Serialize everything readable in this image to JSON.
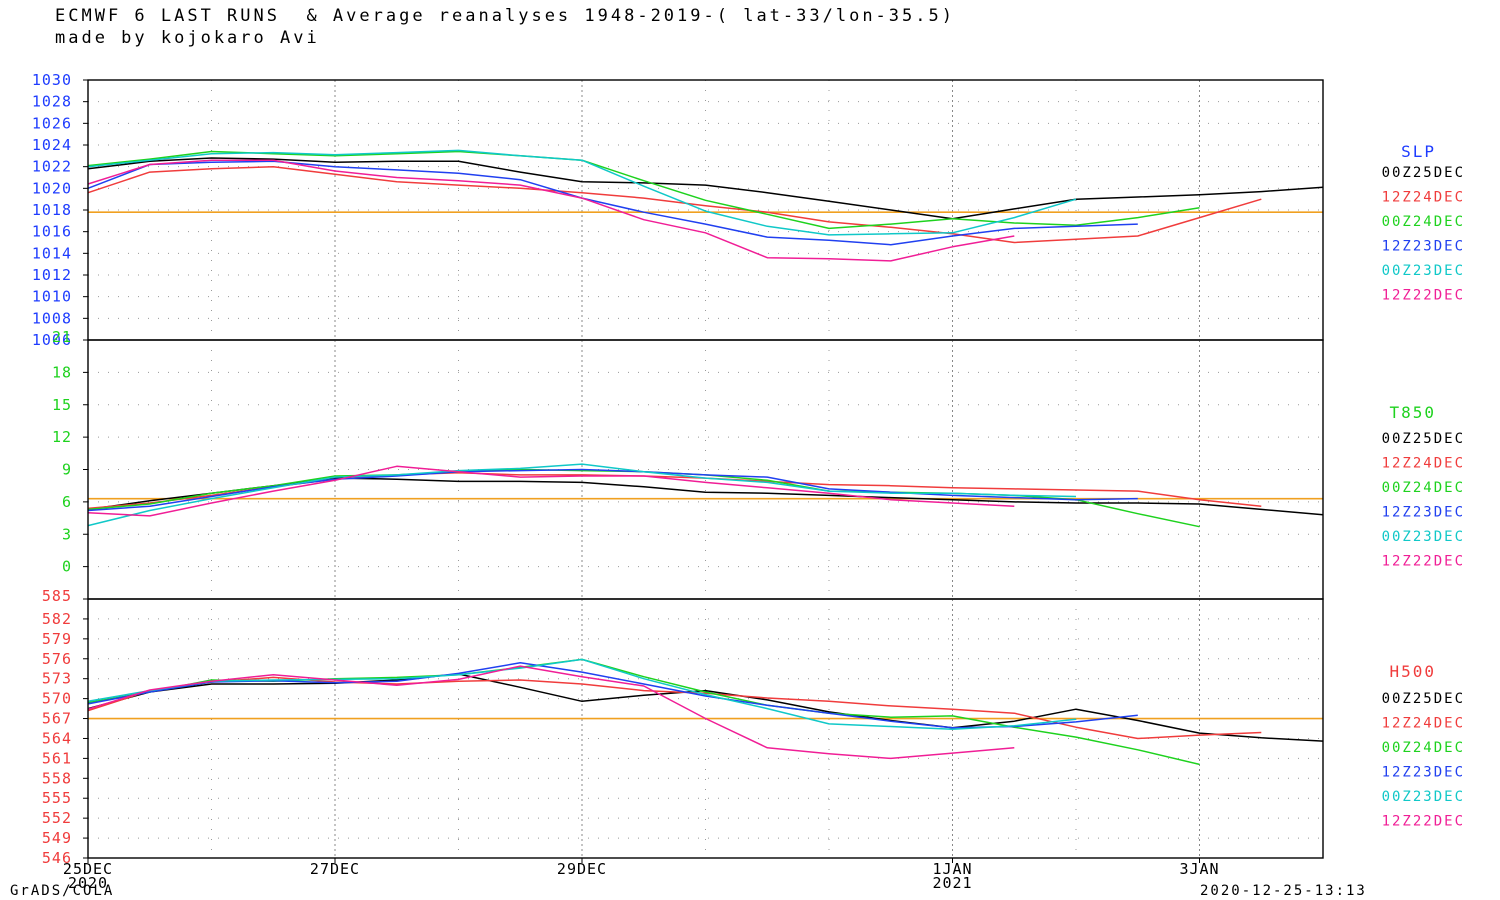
{
  "header": {
    "title": "ECMWF 6 LAST RUNS  & Average reanalyses 1948-2019-( lat-33/lon-35.5)",
    "subtitle": "made by kojokaro Avi"
  },
  "footer": {
    "left": "GrADS/COLA",
    "right": "2020-12-25-13:13"
  },
  "colors": {
    "00Z25DEC": "#000000",
    "12Z24DEC": "#f03c3c",
    "00Z24DEC": "#1ed21e",
    "12Z23DEC": "#2040f0",
    "00Z23DEC": "#10c8c8",
    "12Z22DEC": "#f01e96",
    "average": "#f0a020",
    "slp_axis": "#1e3cff",
    "t850_axis": "#1ed21e",
    "h500_axis": "#f03c3c"
  },
  "chart_data": [
    {
      "type": "line",
      "title": "SLP",
      "x_tick_labels": [
        "25DEC",
        "27DEC",
        "29DEC",
        "1JAN",
        "3JAN"
      ],
      "x_tick_sublabels": [
        "2020",
        "",
        "",
        "2021",
        ""
      ],
      "x_tick_values": [
        0,
        2,
        4,
        7,
        9
      ],
      "xlim": [
        0,
        10
      ],
      "ylim": [
        1006,
        1030
      ],
      "yticks": [
        1006,
        1008,
        1010,
        1012,
        1014,
        1016,
        1018,
        1020,
        1022,
        1024,
        1026,
        1028,
        1030
      ],
      "grid": true,
      "legend_position": "right",
      "average": 1017.8,
      "series": [
        {
          "name": "00Z25DEC",
          "x": [
            0,
            0.5,
            1,
            1.5,
            2,
            2.5,
            3,
            3.5,
            4,
            4.5,
            5,
            5.5,
            6,
            6.5,
            7,
            7.5,
            8,
            8.5,
            9,
            9.5,
            10
          ],
          "values": [
            1021.8,
            1022.5,
            1022.8,
            1022.7,
            1022.4,
            1022.5,
            1022.5,
            1021.5,
            1020.6,
            1020.5,
            1020.3,
            1019.6,
            1018.8,
            1018.0,
            1017.2,
            1018.1,
            1019.0,
            1019.2,
            1019.4,
            1019.7,
            1020.1
          ]
        },
        {
          "name": "12Z24DEC",
          "x": [
            0,
            0.5,
            1,
            1.5,
            2,
            2.5,
            3,
            3.5,
            4,
            4.5,
            5,
            5.5,
            6,
            6.5,
            7,
            7.5,
            8,
            8.5,
            9,
            9.5
          ],
          "values": [
            1019.6,
            1021.5,
            1021.8,
            1022.0,
            1021.3,
            1020.6,
            1020.3,
            1020.0,
            1019.6,
            1019.1,
            1018.4,
            1017.8,
            1016.9,
            1016.4,
            1015.8,
            1015.0,
            1015.3,
            1015.6,
            1017.3,
            1019.0
          ]
        },
        {
          "name": "00Z24DEC",
          "x": [
            0,
            0.5,
            1,
            1.5,
            2,
            2.5,
            3,
            3.5,
            4,
            4.5,
            5,
            5.5,
            6,
            6.5,
            7,
            7.5,
            8,
            8.5,
            9
          ],
          "values": [
            1022.1,
            1022.7,
            1023.4,
            1023.2,
            1023.0,
            1023.2,
            1023.4,
            1023.0,
            1022.6,
            1020.7,
            1018.9,
            1017.6,
            1016.3,
            1016.7,
            1017.2,
            1016.8,
            1016.6,
            1017.3,
            1018.2
          ]
        },
        {
          "name": "12Z23DEC",
          "x": [
            0,
            0.5,
            1,
            1.5,
            2,
            2.5,
            3,
            3.5,
            4,
            4.5,
            5,
            5.5,
            6,
            6.5,
            7,
            7.5,
            8,
            8.5
          ],
          "values": [
            1020.0,
            1022.2,
            1022.4,
            1022.5,
            1022.0,
            1021.7,
            1021.4,
            1020.8,
            1019.1,
            1017.8,
            1016.7,
            1015.5,
            1015.2,
            1014.8,
            1015.6,
            1016.3,
            1016.5,
            1016.7
          ]
        },
        {
          "name": "00Z23DEC",
          "x": [
            0,
            0.5,
            1,
            1.5,
            2,
            2.5,
            3,
            3.5,
            4,
            4.5,
            5,
            5.5,
            6,
            6.5,
            7,
            7.5,
            8
          ],
          "values": [
            1022.0,
            1022.6,
            1023.2,
            1023.3,
            1023.1,
            1023.3,
            1023.5,
            1023.0,
            1022.6,
            1020.2,
            1017.9,
            1016.5,
            1015.7,
            1015.8,
            1015.9,
            1017.3,
            1019.0
          ]
        },
        {
          "name": "12Z22DEC",
          "x": [
            0,
            0.5,
            1,
            1.5,
            2,
            2.5,
            3,
            3.5,
            4,
            4.5,
            5,
            5.5,
            6,
            6.5,
            7,
            7.5
          ],
          "values": [
            1020.4,
            1022.2,
            1022.6,
            1022.6,
            1021.6,
            1021.0,
            1020.7,
            1020.3,
            1019.1,
            1017.1,
            1015.9,
            1013.6,
            1013.5,
            1013.3,
            1014.6,
            1015.6
          ]
        }
      ]
    },
    {
      "type": "line",
      "title": "T850",
      "x_tick_labels": [
        "25DEC",
        "27DEC",
        "29DEC",
        "1JAN",
        "3JAN"
      ],
      "x_tick_sublabels": [
        "2020",
        "",
        "",
        "2021",
        ""
      ],
      "x_tick_values": [
        0,
        2,
        4,
        7,
        9
      ],
      "xlim": [
        0,
        10
      ],
      "ylim": [
        -3,
        21
      ],
      "yticks": [
        0,
        3,
        6,
        9,
        12,
        15,
        18,
        21
      ],
      "grid": true,
      "legend_position": "right",
      "average": 6.3,
      "series": [
        {
          "name": "00Z25DEC",
          "x": [
            0,
            0.5,
            1,
            1.5,
            2,
            2.5,
            3,
            3.5,
            4,
            4.5,
            5,
            5.5,
            6,
            6.5,
            7,
            7.5,
            8,
            8.5,
            9,
            9.5,
            10
          ],
          "values": [
            5.3,
            6.1,
            6.8,
            7.5,
            8.2,
            8.1,
            7.9,
            7.9,
            7.8,
            7.4,
            6.9,
            6.8,
            6.6,
            6.4,
            6.2,
            6.0,
            5.9,
            5.9,
            5.8,
            5.3,
            4.8
          ]
        },
        {
          "name": "12Z24DEC",
          "x": [
            0,
            0.5,
            1,
            1.5,
            2,
            2.5,
            3,
            3.5,
            4,
            4.5,
            5,
            5.5,
            6,
            6.5,
            7,
            7.5,
            8,
            8.5,
            9,
            9.5
          ],
          "values": [
            5.4,
            5.9,
            6.6,
            7.4,
            8.1,
            8.5,
            8.7,
            8.5,
            8.5,
            8.4,
            8.2,
            7.9,
            7.6,
            7.5,
            7.3,
            7.2,
            7.1,
            7.0,
            6.2,
            5.6
          ]
        },
        {
          "name": "00Z24DEC",
          "x": [
            0,
            0.5,
            1,
            1.5,
            2,
            2.5,
            3,
            3.5,
            4,
            4.5,
            5,
            5.5,
            6,
            6.5,
            7,
            7.5,
            8,
            8.5,
            9
          ],
          "values": [
            5.3,
            5.8,
            6.8,
            7.5,
            8.4,
            8.5,
            8.8,
            9.0,
            8.9,
            8.8,
            8.5,
            8.0,
            7.0,
            6.9,
            6.8,
            6.6,
            6.2,
            4.9,
            3.7
          ]
        },
        {
          "name": "12Z23DEC",
          "x": [
            0,
            0.5,
            1,
            1.5,
            2,
            2.5,
            3,
            3.5,
            4,
            4.5,
            5,
            5.5,
            6,
            6.5,
            7,
            7.5,
            8,
            8.5
          ],
          "values": [
            5.2,
            5.6,
            6.5,
            7.4,
            8.1,
            8.4,
            8.8,
            8.9,
            9.0,
            8.8,
            8.5,
            8.3,
            7.2,
            6.9,
            6.6,
            6.4,
            6.2,
            6.3
          ]
        },
        {
          "name": "00Z23DEC",
          "x": [
            0,
            0.5,
            1,
            1.5,
            2,
            2.5,
            3,
            3.5,
            4,
            4.5,
            5,
            5.5,
            6,
            6.5,
            7,
            7.5,
            8
          ],
          "values": [
            3.8,
            5.2,
            6.3,
            7.3,
            8.3,
            8.5,
            8.9,
            9.1,
            9.5,
            8.8,
            8.2,
            7.8,
            7.0,
            6.8,
            6.8,
            6.6,
            6.5
          ]
        },
        {
          "name": "12Z22DEC",
          "x": [
            0,
            0.5,
            1,
            1.5,
            2,
            2.5,
            3,
            3.5,
            4,
            4.5,
            5,
            5.5,
            6,
            6.5,
            7,
            7.5
          ],
          "values": [
            5.0,
            4.7,
            5.9,
            7.0,
            8.0,
            9.3,
            8.8,
            8.3,
            8.4,
            8.4,
            7.8,
            7.3,
            6.8,
            6.2,
            5.9,
            5.6
          ]
        }
      ]
    },
    {
      "type": "line",
      "title": "H500",
      "x_tick_labels": [
        "25DEC",
        "27DEC",
        "29DEC",
        "1JAN",
        "3JAN"
      ],
      "x_tick_sublabels": [
        "2020",
        "",
        "",
        "2021",
        ""
      ],
      "x_tick_values": [
        0,
        2,
        4,
        7,
        9
      ],
      "xlim": [
        0,
        10
      ],
      "ylim": [
        546,
        585
      ],
      "yticks": [
        546,
        549,
        552,
        555,
        558,
        561,
        564,
        567,
        570,
        573,
        576,
        579,
        582,
        585
      ],
      "grid": true,
      "legend_position": "right",
      "average": 567.0,
      "series": [
        {
          "name": "00Z25DEC",
          "x": [
            0,
            0.5,
            1,
            1.5,
            2,
            2.5,
            3,
            3.5,
            4,
            4.5,
            5,
            5.5,
            6,
            6.5,
            7,
            7.5,
            8,
            8.5,
            9,
            9.5,
            10
          ],
          "values": [
            568.5,
            571.0,
            572.2,
            572.2,
            572.3,
            572.8,
            573.7,
            571.7,
            569.6,
            570.5,
            571.2,
            569.8,
            568.0,
            566.7,
            565.6,
            566.6,
            568.4,
            566.7,
            564.8,
            564.1,
            563.6
          ]
        },
        {
          "name": "12Z24DEC",
          "x": [
            0,
            0.5,
            1,
            1.5,
            2,
            2.5,
            3,
            3.5,
            4,
            4.5,
            5,
            5.5,
            6,
            6.5,
            7,
            7.5,
            8,
            8.5,
            9,
            9.5
          ],
          "values": [
            568.2,
            571.2,
            572.5,
            573.2,
            572.5,
            572.2,
            572.6,
            572.8,
            572.2,
            571.2,
            570.8,
            570.1,
            569.6,
            568.9,
            568.4,
            567.8,
            565.7,
            564.0,
            564.5,
            564.9
          ]
        },
        {
          "name": "00Z24DEC",
          "x": [
            0,
            0.5,
            1,
            1.5,
            2,
            2.5,
            3,
            3.5,
            4,
            4.5,
            5,
            5.5,
            6,
            6.5,
            7,
            7.5,
            8,
            8.5,
            9
          ],
          "values": [
            569.4,
            571.0,
            572.8,
            572.6,
            573.0,
            573.2,
            573.6,
            574.7,
            575.9,
            573.3,
            571.0,
            569.0,
            567.8,
            567.2,
            567.4,
            565.7,
            564.2,
            562.3,
            560.1
          ]
        },
        {
          "name": "12Z23DEC",
          "x": [
            0,
            0.5,
            1,
            1.5,
            2,
            2.5,
            3,
            3.5,
            4,
            4.5,
            5,
            5.5,
            6,
            6.5,
            7,
            7.5,
            8,
            8.5
          ],
          "values": [
            569.2,
            571.0,
            572.5,
            572.7,
            572.4,
            572.6,
            573.8,
            575.4,
            574.0,
            572.2,
            570.4,
            569.0,
            567.8,
            566.6,
            565.6,
            565.8,
            566.5,
            567.5
          ]
        },
        {
          "name": "00Z23DEC",
          "x": [
            0,
            0.5,
            1,
            1.5,
            2,
            2.5,
            3,
            3.5,
            4,
            4.5,
            5,
            5.5,
            6,
            6.5,
            7,
            7.5,
            8
          ],
          "values": [
            569.6,
            571.2,
            572.6,
            572.8,
            572.9,
            573.0,
            573.6,
            574.6,
            575.9,
            573.0,
            570.6,
            568.5,
            566.2,
            565.8,
            565.4,
            565.9,
            566.9
          ]
        },
        {
          "name": "12Z22DEC",
          "x": [
            0,
            0.5,
            1,
            1.5,
            2,
            2.5,
            3,
            3.5,
            4,
            4.5,
            5,
            5.5,
            6,
            6.5,
            7,
            7.5
          ],
          "values": [
            568.4,
            571.3,
            572.6,
            573.6,
            572.8,
            572.0,
            572.9,
            574.9,
            573.3,
            571.9,
            567.0,
            562.6,
            561.7,
            561.0,
            561.8,
            562.6
          ]
        }
      ]
    }
  ]
}
